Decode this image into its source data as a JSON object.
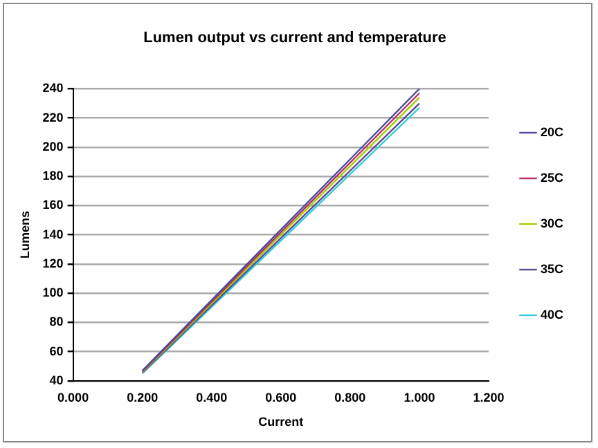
{
  "chart_data": {
    "type": "line",
    "title": "Lumen output vs current and temperature",
    "xlabel": "Current",
    "ylabel": "Lumens",
    "x": [
      0.2,
      1.0
    ],
    "series": [
      {
        "name": "20C",
        "color": "#4b4b9c",
        "values": [
          47,
          240
        ]
      },
      {
        "name": "25C",
        "color": "#b0306a",
        "values": [
          46.5,
          237
        ]
      },
      {
        "name": "30C",
        "color": "#a8c800",
        "values": [
          46,
          234
        ]
      },
      {
        "name": "35C",
        "color": "#5a4a8a",
        "values": [
          45.5,
          230
        ]
      },
      {
        "name": "40C",
        "color": "#33ccdd",
        "values": [
          45,
          227
        ]
      }
    ],
    "xlim": [
      0,
      1.2
    ],
    "xticks": [
      {
        "value": 0,
        "label": "0.000"
      },
      {
        "value": 0.2,
        "label": "0.200"
      },
      {
        "value": 0.4,
        "label": "0.400"
      },
      {
        "value": 0.6,
        "label": "0.600"
      },
      {
        "value": 0.8,
        "label": "0.800"
      },
      {
        "value": 1.0,
        "label": "1.000"
      },
      {
        "value": 1.2,
        "label": "1.200"
      }
    ],
    "ylim": [
      40,
      240
    ],
    "yticks": [
      40,
      60,
      80,
      100,
      120,
      140,
      160,
      180,
      200,
      220,
      240
    ],
    "grid": "y",
    "legend": "right",
    "marker": "none",
    "line_style": "solid"
  }
}
